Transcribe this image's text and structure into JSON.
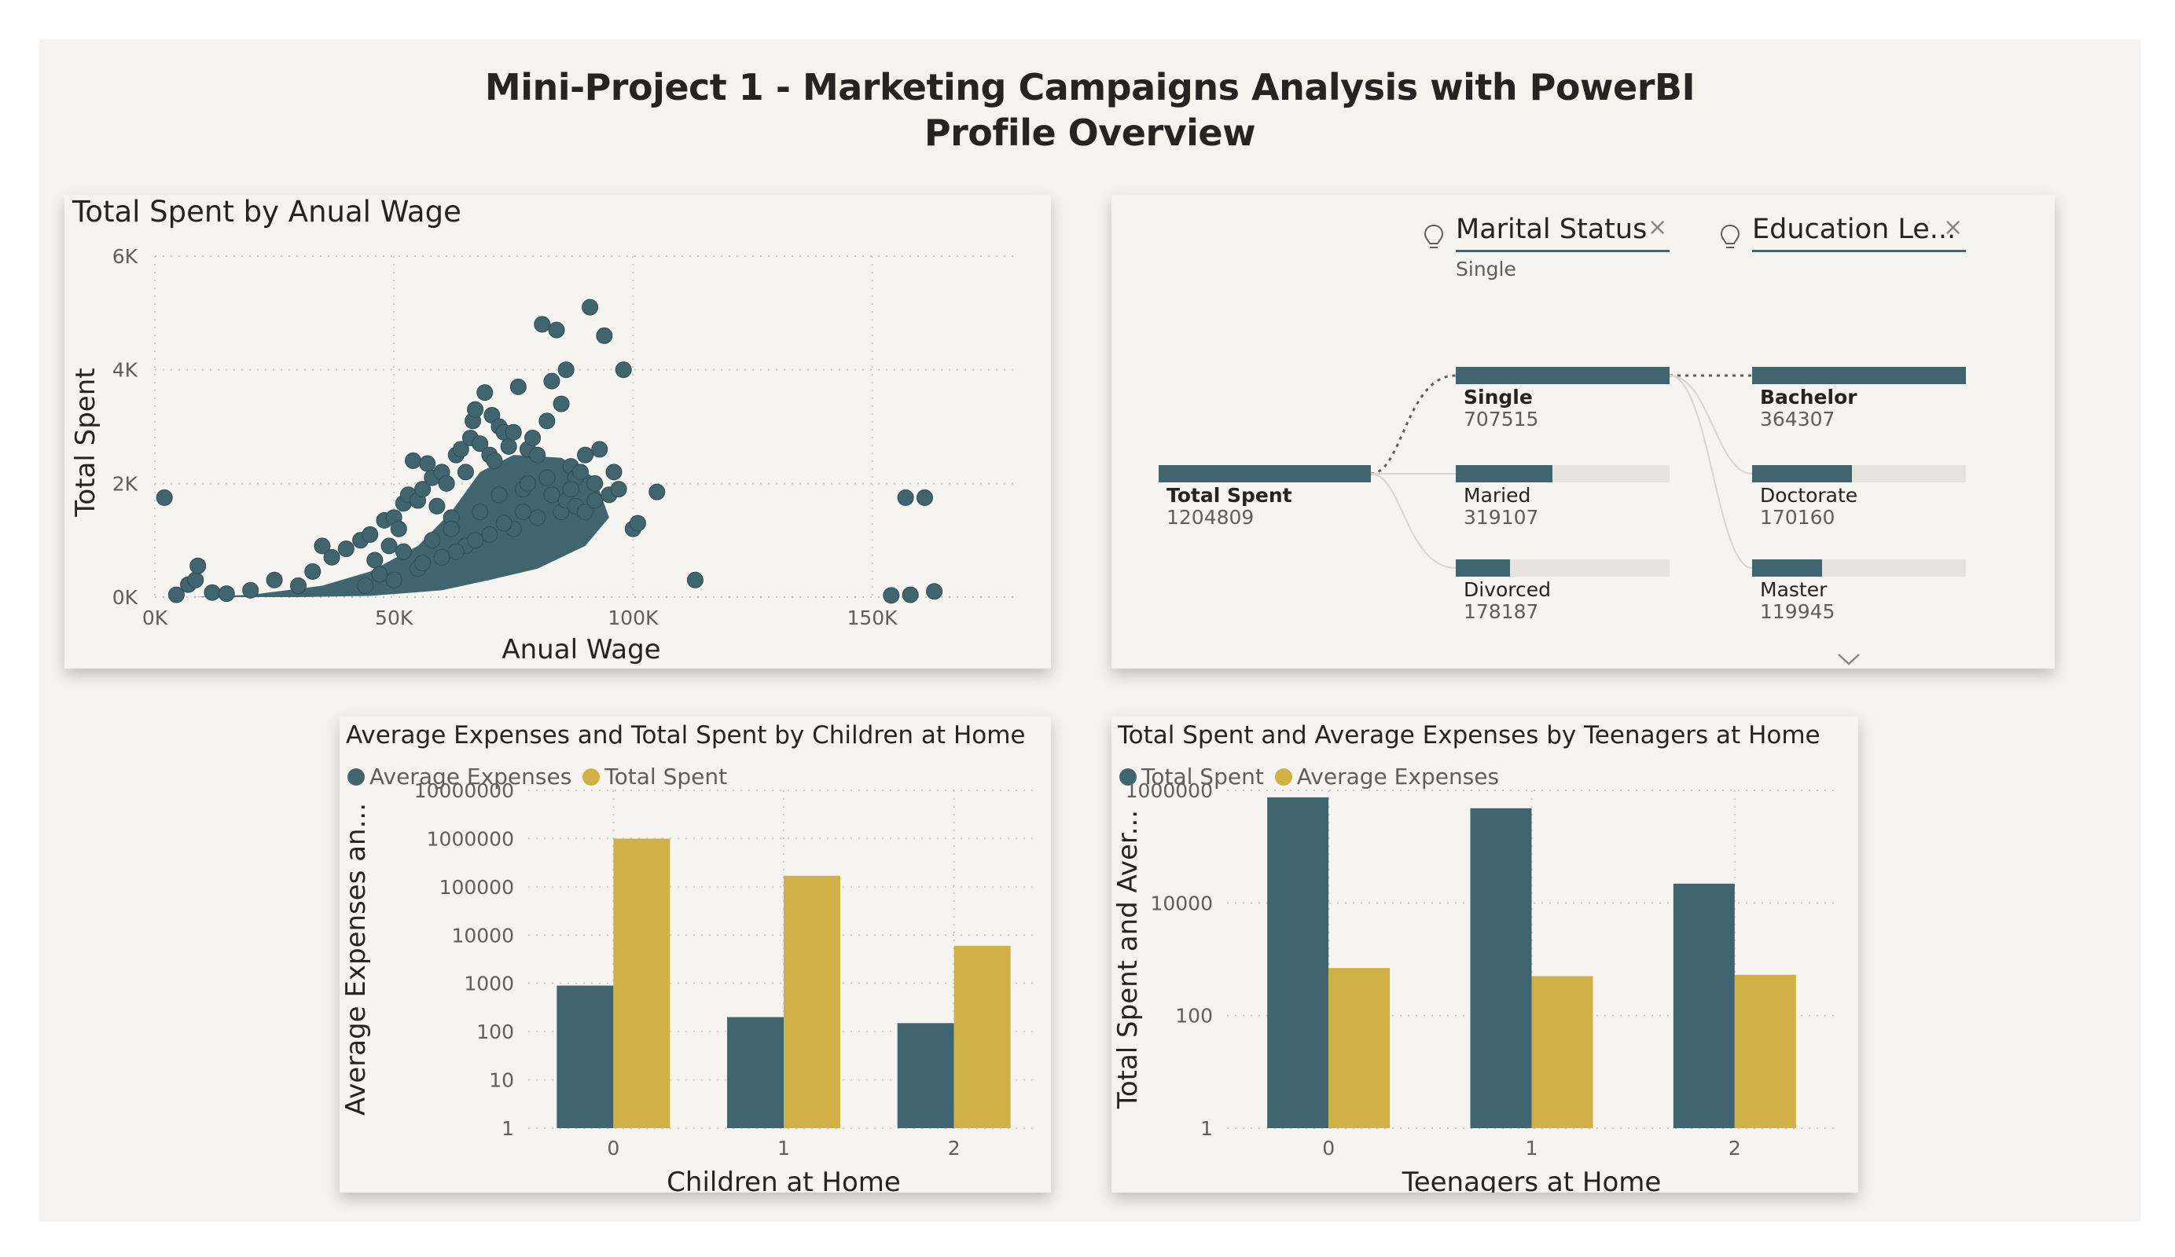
{
  "header": {
    "title_line1": "Mini-Project 1 - Marketing Campaigns Analysis with PowerBI",
    "title_line2": "Profile  Overview"
  },
  "colors": {
    "teal": "#41656f",
    "gold": "#d1b147",
    "grey_bar": "#e6e3de"
  },
  "scatter": {
    "chart_data": {
      "type": "scatter",
      "title": "Total Spent by Anual Wage",
      "xlabel": "Anual Wage",
      "ylabel": "Total Spent",
      "xlim": [
        0,
        180000
      ],
      "ylim": [
        0,
        6000
      ],
      "x_ticks": [
        {
          "v": 0,
          "label": "0K"
        },
        {
          "v": 50000,
          "label": "50K"
        },
        {
          "v": 100000,
          "label": "100K"
        },
        {
          "v": 150000,
          "label": "150K"
        }
      ],
      "y_ticks": [
        {
          "v": 0,
          "label": "0K"
        },
        {
          "v": 2000,
          "label": "2K"
        },
        {
          "v": 4000,
          "label": "4K"
        },
        {
          "v": 6000,
          "label": "6K"
        }
      ],
      "grid": true,
      "color": "#41656f",
      "points": [
        [
          2000,
          1750
        ],
        [
          4500,
          40
        ],
        [
          7000,
          220
        ],
        [
          8500,
          300
        ],
        [
          9000,
          550
        ],
        [
          12000,
          80
        ],
        [
          15000,
          60
        ],
        [
          20000,
          120
        ],
        [
          25000,
          300
        ],
        [
          30000,
          200
        ],
        [
          33000,
          450
        ],
        [
          35000,
          900
        ],
        [
          37000,
          700
        ],
        [
          40000,
          850
        ],
        [
          43000,
          1000
        ],
        [
          45000,
          1100
        ],
        [
          46000,
          650
        ],
        [
          48000,
          1350
        ],
        [
          49000,
          900
        ],
        [
          50000,
          1400
        ],
        [
          51000,
          1200
        ],
        [
          52000,
          1650
        ],
        [
          53000,
          1800
        ],
        [
          54000,
          2400
        ],
        [
          55000,
          1700
        ],
        [
          56000,
          1900
        ],
        [
          57000,
          2350
        ],
        [
          58000,
          2100
        ],
        [
          59000,
          1600
        ],
        [
          60000,
          2200
        ],
        [
          61000,
          2000
        ],
        [
          62000,
          1400
        ],
        [
          63000,
          2500
        ],
        [
          64000,
          2600
        ],
        [
          65000,
          2200
        ],
        [
          66000,
          2800
        ],
        [
          66500,
          3100
        ],
        [
          67000,
          3300
        ],
        [
          68000,
          2700
        ],
        [
          69000,
          3600
        ],
        [
          70000,
          2500
        ],
        [
          70500,
          3200
        ],
        [
          71000,
          2400
        ],
        [
          72000,
          3000
        ],
        [
          73000,
          2900
        ],
        [
          74000,
          2650
        ],
        [
          75000,
          2900
        ],
        [
          76000,
          3700
        ],
        [
          77000,
          1900
        ],
        [
          78000,
          2600
        ],
        [
          79000,
          2800
        ],
        [
          80000,
          2500
        ],
        [
          81000,
          4800
        ],
        [
          82000,
          3100
        ],
        [
          83000,
          3800
        ],
        [
          84000,
          4700
        ],
        [
          85000,
          3400
        ],
        [
          86000,
          4000
        ],
        [
          87000,
          2300
        ],
        [
          88000,
          2100
        ],
        [
          89000,
          2200
        ],
        [
          90000,
          2500
        ],
        [
          91000,
          5100
        ],
        [
          92000,
          2000
        ],
        [
          93000,
          2600
        ],
        [
          94000,
          4600
        ],
        [
          95000,
          1800
        ],
        [
          96000,
          2200
        ],
        [
          97000,
          1900
        ],
        [
          98000,
          4000
        ],
        [
          100000,
          1200
        ],
        [
          101000,
          1300
        ],
        [
          105000,
          1850
        ],
        [
          113000,
          300
        ],
        [
          154000,
          30
        ],
        [
          157000,
          1750
        ],
        [
          158000,
          40
        ],
        [
          161000,
          1750
        ],
        [
          163000,
          100
        ],
        [
          50000,
          300
        ],
        [
          55000,
          500
        ],
        [
          60000,
          700
        ],
        [
          65000,
          900
        ],
        [
          70000,
          1100
        ],
        [
          75000,
          1200
        ],
        [
          80000,
          1400
        ],
        [
          85000,
          1500
        ],
        [
          52000,
          800
        ],
        [
          58000,
          1000
        ],
        [
          62000,
          1200
        ],
        [
          68000,
          1500
        ],
        [
          72000,
          1800
        ],
        [
          78000,
          2000
        ],
        [
          82000,
          2100
        ],
        [
          86000,
          1700
        ],
        [
          88000,
          1600
        ],
        [
          44000,
          200
        ],
        [
          47000,
          400
        ],
        [
          56000,
          600
        ],
        [
          63000,
          800
        ],
        [
          67000,
          1000
        ],
        [
          73000,
          1300
        ],
        [
          77000,
          1500
        ],
        [
          83000,
          1800
        ],
        [
          87000,
          1900
        ],
        [
          90000,
          1500
        ],
        [
          92000,
          1700
        ]
      ],
      "blob": [
        [
          8000,
          0
        ],
        [
          20000,
          40
        ],
        [
          35000,
          200
        ],
        [
          45000,
          450
        ],
        [
          55000,
          900
        ],
        [
          62000,
          1500
        ],
        [
          68000,
          2200
        ],
        [
          75000,
          2500
        ],
        [
          85000,
          2450
        ],
        [
          92000,
          2100
        ],
        [
          95000,
          1400
        ],
        [
          90000,
          900
        ],
        [
          80000,
          500
        ],
        [
          70000,
          300
        ],
        [
          60000,
          120
        ],
        [
          45000,
          20
        ],
        [
          30000,
          0
        ]
      ]
    }
  },
  "decomp": {
    "filter1": {
      "label": "Marital Status",
      "sub": "Single"
    },
    "filter2": {
      "label": "Education Le..."
    },
    "root": {
      "label": "Total Spent",
      "value": "1204809"
    },
    "level1": [
      {
        "label": "Single",
        "value": "707515",
        "fraction": 1.0,
        "selected": true
      },
      {
        "label": "Maried",
        "value": "319107",
        "fraction": 0.451
      },
      {
        "label": "Divorced",
        "value": "178187",
        "fraction": 0.252
      }
    ],
    "level2": [
      {
        "label": "Bachelor",
        "value": "364307",
        "fraction": 1.0
      },
      {
        "label": "Doctorate",
        "value": "170160",
        "fraction": 0.467
      },
      {
        "label": "Master",
        "value": "119945",
        "fraction": 0.329
      }
    ]
  },
  "children_chart": {
    "chart_data": {
      "type": "bar",
      "title": "Average Expenses and Total Spent by Children at Home",
      "xlabel": "Children at Home",
      "ylabel": "Average Expenses an...",
      "yscale": "log",
      "ylim": [
        1,
        10000000
      ],
      "y_ticks": [
        "1",
        "10",
        "100",
        "1000",
        "10000",
        "100000",
        "1000000",
        "10000000"
      ],
      "categories": [
        "0",
        "1",
        "2"
      ],
      "series": [
        {
          "name": "Average Expenses",
          "color": "#41656f",
          "values": [
            900,
            200,
            150
          ]
        },
        {
          "name": "Total Spent",
          "color": "#d1b147",
          "values": [
            1000000,
            170000,
            6000
          ]
        }
      ]
    }
  },
  "teens_chart": {
    "chart_data": {
      "type": "bar",
      "title": "Total Spent and Average Expenses by Teenagers at Home",
      "xlabel": "Teenagers at Home",
      "ylabel": "Total Spent and Aver...",
      "yscale": "log",
      "ylim": [
        1,
        1000000
      ],
      "y_ticks": [
        "1",
        "100",
        "10000",
        "1000000"
      ],
      "categories": [
        "0",
        "1",
        "2"
      ],
      "series": [
        {
          "name": "Total Spent",
          "color": "#41656f",
          "values": [
            750000,
            480000,
            22000
          ]
        },
        {
          "name": "Average Expenses",
          "color": "#d1b147",
          "values": [
            700,
            500,
            530
          ]
        }
      ]
    }
  }
}
